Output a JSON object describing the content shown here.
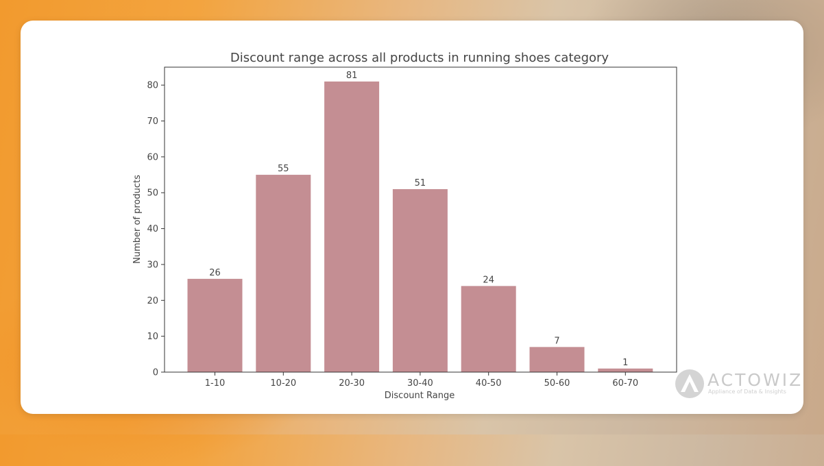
{
  "chart_data": {
    "type": "bar",
    "title": "Discount range across all products in running shoes category",
    "xlabel": "Discount Range",
    "ylabel": "Number of products",
    "categories": [
      "1-10",
      "10-20",
      "20-30",
      "30-40",
      "40-50",
      "50-60",
      "60-70"
    ],
    "values": [
      26,
      55,
      81,
      51,
      24,
      7,
      1
    ],
    "data_labels": [
      "26",
      "55",
      "81",
      "51",
      "24",
      "7",
      "1"
    ],
    "yticks": [
      "0",
      "10",
      "20",
      "30",
      "40",
      "50",
      "60",
      "70",
      "80"
    ],
    "ylim": [
      0,
      85
    ],
    "grid": false,
    "bar_color": "#c48e93"
  },
  "logo": {
    "name": "ACTOWIZ",
    "tagline": "Appliance of Data & Insights"
  }
}
